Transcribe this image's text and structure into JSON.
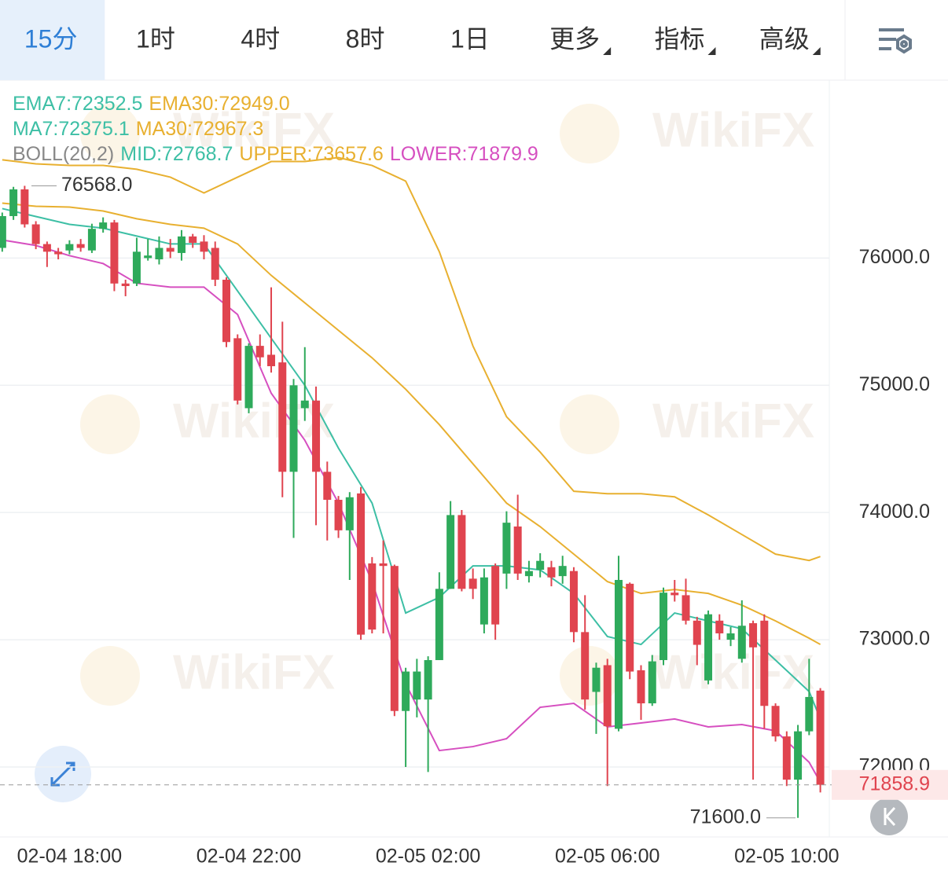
{
  "tabs": {
    "items": [
      "15分",
      "1时",
      "4时",
      "8时",
      "1日",
      "更多",
      "指标",
      "高级"
    ],
    "active": 0
  },
  "chart_data": {
    "type": "candlestick",
    "watermark": "WikiFX",
    "up_color": "#2eaa5b",
    "down_color": "#e0444f",
    "legend": [
      [
        {
          "text": "EMA7:72352.5",
          "color": "#3dbfa5",
          "x": [
            0,
            3,
            6,
            9,
            12,
            15,
            18,
            21,
            24,
            27,
            30,
            33,
            36,
            39,
            42,
            45,
            48,
            51,
            54,
            57,
            60,
            63,
            66,
            69,
            72,
            73
          ],
          "values": [
            76389,
            76327,
            76265,
            76235,
            76173,
            76111,
            76111,
            75741,
            75370,
            75000,
            74506,
            74074,
            73210,
            73333,
            73580,
            73580,
            73549,
            73364,
            73025,
            72963,
            73210,
            73148,
            73086,
            72840,
            72593,
            72377
          ]
        },
        {
          "text": "EMA30:72949.0",
          "color": "#e8b030",
          "x": [
            0,
            3,
            6,
            9,
            12,
            15,
            18,
            21,
            24,
            27,
            30,
            33,
            36,
            39,
            42,
            45,
            48,
            51,
            54,
            57,
            60,
            63,
            66,
            69,
            72,
            73
          ],
          "values": [
            76432,
            76407,
            76401,
            76370,
            76309,
            76265,
            76235,
            76111,
            75864,
            75648,
            75432,
            75216,
            74969,
            74691,
            74383,
            74074,
            73889,
            73673,
            73457,
            73364,
            73395,
            73364,
            73272,
            73148,
            73012,
            72963
          ]
        }
      ],
      [
        {
          "text": "MA7:72375.1",
          "color": "#3dbfa5"
        },
        {
          "text": "MA30:72967.3",
          "color": "#e8b030"
        }
      ],
      [
        {
          "text": "BOLL(20,2)",
          "color": "#888888"
        },
        {
          "text": "MID:72768.7",
          "color": "#3dbfa5"
        },
        {
          "text": "UPPER:73657.6",
          "color": "#e8b030",
          "x": [
            0,
            3,
            6,
            9,
            12,
            15,
            18,
            21,
            24,
            27,
            30,
            33,
            36,
            39,
            42,
            45,
            48,
            51,
            54,
            57,
            60,
            63,
            66,
            69,
            72,
            73
          ],
          "values": [
            76772,
            76741,
            76728,
            76728,
            76698,
            76636,
            76512,
            76636,
            76759,
            76759,
            76790,
            76728,
            76605,
            76050,
            75309,
            74753,
            74475,
            74167,
            74148,
            74148,
            74123,
            73981,
            73827,
            73673,
            73623,
            73654
          ]
        },
        {
          "text": "LOWER:71879.9",
          "color": "#d64fc0",
          "x": [
            0,
            3,
            6,
            9,
            12,
            15,
            18,
            21,
            24,
            27,
            30,
            33,
            36,
            39,
            42,
            45,
            48,
            51,
            54,
            57,
            60,
            63,
            66,
            69,
            72,
            73
          ],
          "values": [
            76142,
            76099,
            76019,
            75957,
            75802,
            75772,
            75772,
            75556,
            74938,
            74568,
            74074,
            73457,
            72654,
            72129,
            72160,
            72222,
            72469,
            72500,
            72315,
            72346,
            72377,
            72315,
            72333,
            72284,
            72037,
            71880
          ]
        }
      ]
    ],
    "x": [
      0,
      1,
      2,
      3,
      4,
      5,
      6,
      7,
      8,
      9,
      10,
      11,
      12,
      13,
      14,
      15,
      16,
      17,
      18,
      19,
      20,
      21,
      22,
      23,
      24,
      25,
      26,
      27,
      28,
      29,
      30,
      31,
      32,
      33,
      34,
      35,
      36,
      37,
      38,
      39,
      40,
      41,
      42,
      43,
      44,
      45,
      46,
      47,
      48,
      49,
      50,
      51,
      52,
      53,
      54,
      55,
      56,
      57,
      58,
      59,
      60,
      61,
      62,
      63,
      64,
      65,
      66,
      67,
      68,
      69,
      70,
      71,
      72,
      73
    ],
    "open": [
      76080,
      76330,
      76540,
      76265,
      76110,
      76050,
      76060,
      76110,
      76060,
      76230,
      76280,
      75800,
      75800,
      76000,
      75990,
      76080,
      76040,
      76170,
      76130,
      76080,
      75830,
      75370,
      74820,
      75310,
      75240,
      75180,
      74320,
      74820,
      74880,
      74320,
      74100,
      73860,
      74150,
      73600,
      73600,
      73580,
      72440,
      72530,
      72530,
      72840,
      73400,
      73980,
      73480,
      73120,
      73580,
      73520,
      73890,
      73500,
      73550,
      73570,
      73500,
      73540,
      73060,
      72590,
      72800,
      72300,
      73440,
      72760,
      72500,
      72840,
      73370,
      73350,
      73150,
      72680,
      73150,
      73000,
      72850,
      73130,
      73150,
      72480,
      72240,
      71900,
      72280,
      72600
    ],
    "high": [
      76358,
      76560,
      76568,
      76290,
      76130,
      76080,
      76140,
      76150,
      76270,
      76320,
      76300,
      75830,
      76160,
      76150,
      76170,
      76150,
      76220,
      76190,
      76180,
      76130,
      75850,
      75400,
      75330,
      75400,
      75770,
      75500,
      75050,
      75300,
      74990,
      74400,
      74130,
      74160,
      74200,
      73650,
      73780,
      73590,
      72780,
      72850,
      72870,
      73530,
      74090,
      74020,
      73560,
      73560,
      73600,
      74010,
      74140,
      73620,
      73680,
      73620,
      73660,
      73570,
      73350,
      72820,
      72850,
      73660,
      73450,
      72800,
      72880,
      73410,
      73470,
      73480,
      73180,
      73230,
      73200,
      73100,
      73310,
      73150,
      73200,
      72500,
      72280,
      72330,
      72850,
      72620
    ],
    "low": [
      76050,
      76300,
      76240,
      76070,
      75930,
      75990,
      76030,
      76050,
      76040,
      76200,
      75740,
      75700,
      75780,
      75980,
      75950,
      76000,
      75980,
      76080,
      75990,
      75780,
      75300,
      74850,
      74780,
      75150,
      75100,
      74120,
      73800,
      74720,
      73900,
      73780,
      73800,
      73470,
      73000,
      73050,
      73050,
      72400,
      72000,
      72390,
      71960,
      72840,
      73400,
      73380,
      73320,
      73050,
      73000,
      73400,
      73470,
      73450,
      73490,
      73420,
      73440,
      72980,
      72450,
      72260,
      71850,
      72280,
      72690,
      72370,
      72480,
      72800,
      73300,
      73120,
      72800,
      72650,
      73000,
      72950,
      72820,
      71900,
      72300,
      72200,
      71850,
      71600,
      72250,
      71800
    ],
    "close": [
      76330,
      76540,
      76265,
      76110,
      76050,
      76030,
      76110,
      76080,
      76230,
      76280,
      75800,
      75780,
      76050,
      76020,
      76080,
      76050,
      76170,
      76120,
      76050,
      75830,
      75340,
      74880,
      75310,
      75220,
      75150,
      74320,
      75000,
      74880,
      74320,
      74100,
      73860,
      74120,
      73040,
      73080,
      73580,
      72440,
      72750,
      72750,
      72840,
      73400,
      73980,
      73400,
      73400,
      73490,
      73120,
      73920,
      73520,
      73540,
      73620,
      73490,
      73580,
      73060,
      72530,
      72780,
      72320,
      73470,
      72750,
      72500,
      72830,
      73370,
      73350,
      73150,
      72960,
      73200,
      73050,
      73050,
      73110,
      72940,
      72480,
      72240,
      71900,
      72280,
      72550,
      71860
    ],
    "xlim": [
      -0.2,
      73.8
    ],
    "xticks": [
      {
        "value": 6,
        "label": "02-04 18:00"
      },
      {
        "value": 22,
        "label": "02-04 22:00"
      },
      {
        "value": 38,
        "label": "02-05 02:00"
      },
      {
        "value": 54,
        "label": "02-05 06:00"
      },
      {
        "value": 70,
        "label": "02-05 10:00"
      }
    ],
    "ylim": [
      71450,
      77380
    ],
    "yticks": [
      {
        "value": 72000,
        "label": "72000.0"
      },
      {
        "value": 73000,
        "label": "73000.0"
      },
      {
        "value": 74000,
        "label": "74000.0"
      },
      {
        "value": 75000,
        "label": "75000.0"
      },
      {
        "value": 76000,
        "label": "76000.0"
      }
    ],
    "high_marker": {
      "value": 76568,
      "label": "76568.0"
    },
    "low_marker": {
      "value": 71600,
      "label": "71600.0"
    },
    "current_price": {
      "value": 71858.9,
      "label": "71858.9"
    }
  }
}
